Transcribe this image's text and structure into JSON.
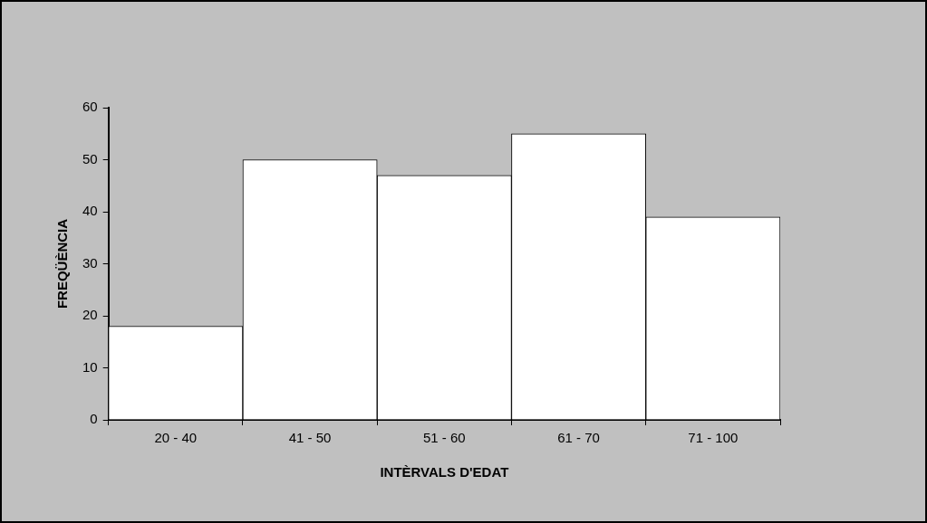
{
  "chart_data": {
    "type": "bar",
    "xlabel": "INTÈRVALS D'EDAT",
    "ylabel": "FREQÜÈNCIA",
    "categories": [
      "20 - 40",
      "41 - 50",
      "51 - 60",
      "61 - 70",
      "71 - 100"
    ],
    "series": [
      {
        "color": "#ffffff",
        "values": [
          18,
          50,
          47,
          55,
          39
        ]
      }
    ],
    "ylim": [
      0,
      60
    ],
    "yticks": [
      0,
      10,
      20,
      30,
      40,
      50,
      60
    ],
    "grid": false,
    "legend": false
  }
}
